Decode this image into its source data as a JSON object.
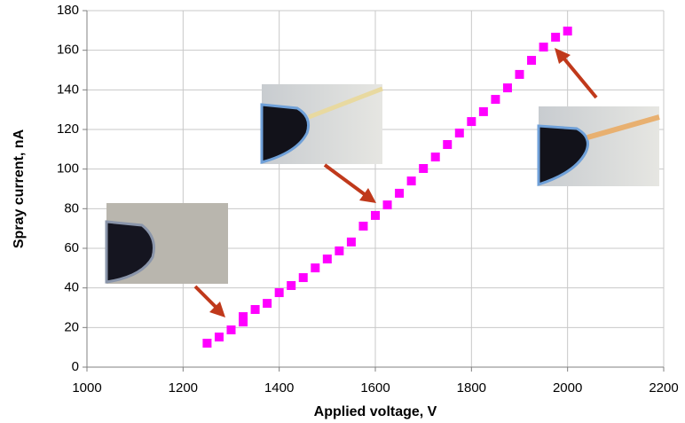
{
  "chart_data": {
    "type": "scatter",
    "xlabel": "Applied voltage, V",
    "ylabel": "Spray current, nA",
    "series": [
      {
        "color": "#ff00ff",
        "x": [
          1250,
          1275,
          1300,
          1325,
          1325,
          1350,
          1375,
          1400,
          1425,
          1450,
          1475,
          1500,
          1525,
          1550,
          1575,
          1600,
          1625,
          1650,
          1675,
          1700,
          1725,
          1750,
          1775,
          1800,
          1825,
          1850,
          1875,
          1900,
          1925,
          1950,
          1975,
          2000
        ],
        "values": [
          12.1,
          15.2,
          18.8,
          22.8,
          25.5,
          29.1,
          32.2,
          37.6,
          41.2,
          45.2,
          50.1,
          54.6,
          58.7,
          63.2,
          71.2,
          76.6,
          81.9,
          87.8,
          94.0,
          100.3,
          106.1,
          112.4,
          118.2,
          124.0,
          129.0,
          135.2,
          141.0,
          147.8,
          154.9,
          161.6,
          166.6,
          169.7
        ]
      }
    ],
    "xlim": [
      1000,
      2200
    ],
    "xticks": [
      1000,
      1200,
      1400,
      1600,
      1800,
      2000,
      2200
    ],
    "ylim": [
      0,
      180
    ],
    "yticks": [
      0,
      20,
      40,
      60,
      80,
      100,
      120,
      140,
      160,
      180
    ],
    "grid": true
  }
}
